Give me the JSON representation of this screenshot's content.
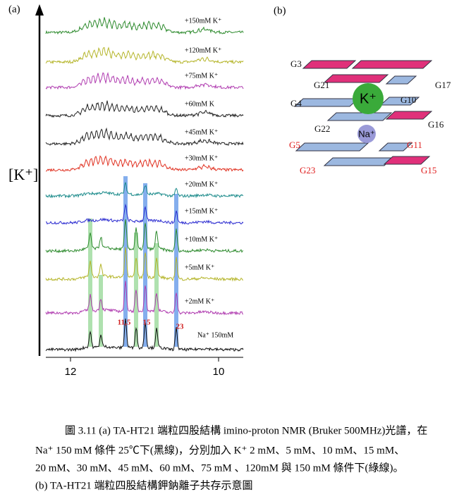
{
  "panel_a": {
    "label": "(a)",
    "axis_label": "[K⁺]",
    "traces": [
      {
        "label": "+150mM K⁺",
        "color": "#2e8b2e"
      },
      {
        "label": "+120mM K⁺",
        "color": "#b5b52a"
      },
      {
        "label": "+75mM K⁺",
        "color": "#b03cb0"
      },
      {
        "label": "+60mM K",
        "color": "#222222"
      },
      {
        "label": "+45mM K⁺",
        "color": "#222222"
      },
      {
        "label": "+30mM K⁺",
        "color": "#e03020"
      },
      {
        "label": "+20mM K⁺",
        "color": "#1a8a8a"
      },
      {
        "label": "+15mM K⁺",
        "color": "#2a2ad0"
      },
      {
        "label": "+10mM K⁺",
        "color": "#2e8b2e"
      },
      {
        "label": "+5mM K⁺",
        "color": "#b5b52a"
      },
      {
        "label": "+2mM K⁺",
        "color": "#b03cb0"
      },
      {
        "label": "Na⁺ 150mM",
        "color": "#111111"
      }
    ],
    "peak_labels": [
      "11,5",
      "15",
      "23"
    ],
    "x_ticks": [
      "12",
      "10"
    ]
  },
  "panel_b": {
    "label": "(b)",
    "ions": [
      "K⁺",
      "Na⁺"
    ],
    "guanines": [
      {
        "label": "G3",
        "color": "#111111"
      },
      {
        "label": "G21",
        "color": "#111111"
      },
      {
        "label": "G17",
        "color": "#111111"
      },
      {
        "label": "G4",
        "color": "#111111"
      },
      {
        "label": "G10",
        "color": "#111111"
      },
      {
        "label": "G22",
        "color": "#111111"
      },
      {
        "label": "G16",
        "color": "#111111"
      },
      {
        "label": "G5",
        "color": "#e02020"
      },
      {
        "label": "G11",
        "color": "#e02020"
      },
      {
        "label": "G23",
        "color": "#e02020"
      },
      {
        "label": "G15",
        "color": "#e02020"
      }
    ]
  },
  "caption": [
    "圖 3.11 (a) TA-HT21 端粒四股結構 imino-proton NMR (Bruker 500MHz)光譜，在",
    "Na⁺ 150 mM 條件 25℃下(黑線)，分別加入 K⁺ 2 mM、5 mM、10 mM、15 mM、",
    "20 mM、30 mM、45 mM、60 mM、75 mM 、120mM 與 150 mM 條件下(綠線)。",
    "(b) TA-HT21 端粒四股結構鉀鈉離子共存示意圖"
  ]
}
